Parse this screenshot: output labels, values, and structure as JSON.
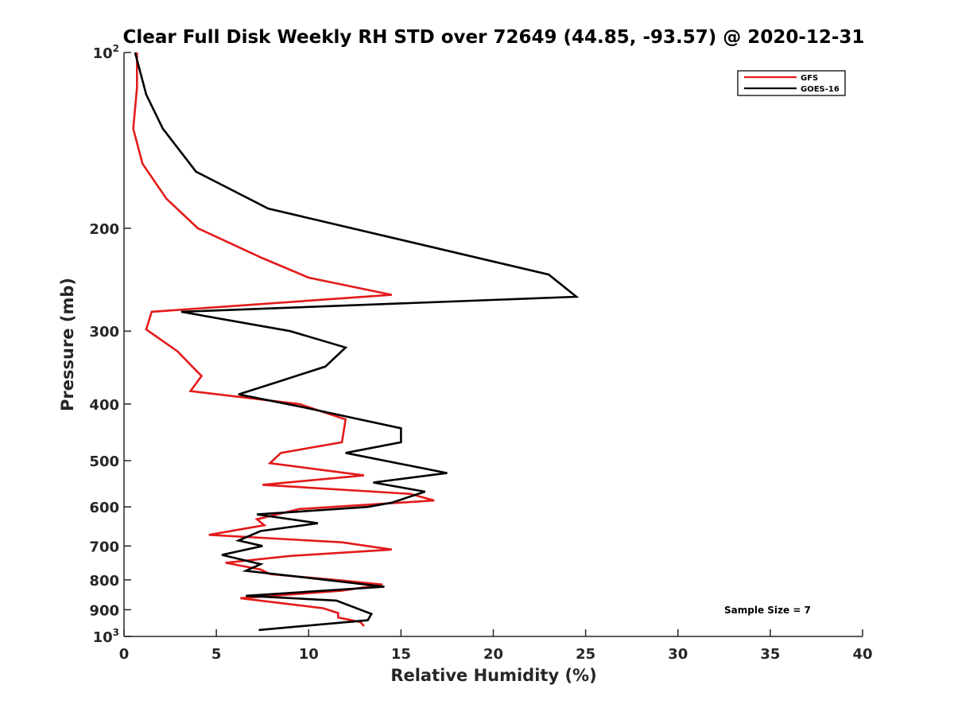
{
  "chart_data": {
    "type": "line",
    "title": "Clear Full Disk Weekly RH STD over 72649 (44.85, -93.57) @ 2020-12-31",
    "xlabel": "Relative Humidity (%)",
    "ylabel": "Pressure (mb)",
    "xlim": [
      0,
      40
    ],
    "ylim": [
      100,
      1000
    ],
    "yscale": "log",
    "y_reversed": true,
    "grid": false,
    "legend_position": "top-right",
    "x_ticks": [
      0,
      5,
      10,
      15,
      20,
      25,
      30,
      35,
      40
    ],
    "x_tick_labels": [
      "0",
      "5",
      "10",
      "15",
      "20",
      "25",
      "30",
      "35",
      "40"
    ],
    "y_ticks": [
      100,
      200,
      300,
      400,
      500,
      600,
      700,
      800,
      900,
      1000
    ],
    "y_tick_labels": [
      {
        "base": "10",
        "exp": "2"
      },
      {
        "text": "200"
      },
      {
        "text": "300"
      },
      {
        "text": "400"
      },
      {
        "text": "500"
      },
      {
        "text": "600"
      },
      {
        "text": "700"
      },
      {
        "text": "800"
      },
      {
        "text": "900"
      },
      {
        "base": "10",
        "exp": "3"
      }
    ],
    "annotation": "Sample Size = 7",
    "series": [
      {
        "name": "GFS",
        "color": "#e31a1a",
        "points": [
          [
            0.7,
            100
          ],
          [
            0.7,
            115
          ],
          [
            0.5,
            135
          ],
          [
            1.0,
            155
          ],
          [
            2.3,
            178
          ],
          [
            4.0,
            200
          ],
          [
            7.5,
            225
          ],
          [
            10.0,
            243
          ],
          [
            14.5,
            260
          ],
          [
            1.5,
            278
          ],
          [
            1.2,
            298
          ],
          [
            2.9,
            325
          ],
          [
            3.7,
            345
          ],
          [
            4.2,
            358
          ],
          [
            3.6,
            380
          ],
          [
            9.5,
            400
          ],
          [
            12.0,
            425
          ],
          [
            11.8,
            465
          ],
          [
            8.5,
            485
          ],
          [
            7.9,
            505
          ],
          [
            13.0,
            530
          ],
          [
            7.5,
            550
          ],
          [
            15.5,
            570
          ],
          [
            16.8,
            585
          ],
          [
            9.5,
            605
          ],
          [
            7.2,
            630
          ],
          [
            7.6,
            645
          ],
          [
            4.6,
            670
          ],
          [
            11.8,
            690
          ],
          [
            14.5,
            710
          ],
          [
            9.0,
            728
          ],
          [
            5.5,
            748
          ],
          [
            7.4,
            768
          ],
          [
            7.9,
            782
          ],
          [
            11.8,
            802
          ],
          [
            14.0,
            815
          ],
          [
            11.8,
            835
          ],
          [
            6.3,
            860
          ],
          [
            10.8,
            895
          ],
          [
            11.6,
            912
          ],
          [
            11.6,
            928
          ],
          [
            12.8,
            945
          ],
          [
            13.0,
            960
          ]
        ]
      },
      {
        "name": "GOES-16",
        "color": "#000000",
        "points": [
          [
            0.6,
            100
          ],
          [
            1.2,
            118
          ],
          [
            2.1,
            135
          ],
          [
            3.9,
            160
          ],
          [
            7.8,
            185
          ],
          [
            23.0,
            240
          ],
          [
            24.5,
            262
          ],
          [
            3.1,
            278
          ],
          [
            9.0,
            300
          ],
          [
            12.0,
            320
          ],
          [
            10.9,
            345
          ],
          [
            8.5,
            365
          ],
          [
            6.2,
            385
          ],
          [
            9.7,
            405
          ],
          [
            15.0,
            440
          ],
          [
            15.0,
            465
          ],
          [
            12.0,
            485
          ],
          [
            17.5,
            525
          ],
          [
            13.5,
            545
          ],
          [
            16.3,
            565
          ],
          [
            14.5,
            590
          ],
          [
            13.2,
            600
          ],
          [
            7.2,
            618
          ],
          [
            10.5,
            640
          ],
          [
            7.4,
            660
          ],
          [
            6.2,
            685
          ],
          [
            7.5,
            700
          ],
          [
            5.3,
            725
          ],
          [
            7.4,
            752
          ],
          [
            6.6,
            772
          ],
          [
            11.7,
            805
          ],
          [
            14.1,
            822
          ],
          [
            6.6,
            852
          ],
          [
            11.5,
            868
          ],
          [
            13.4,
            915
          ],
          [
            13.2,
            938
          ],
          [
            7.3,
            975
          ]
        ]
      }
    ]
  }
}
